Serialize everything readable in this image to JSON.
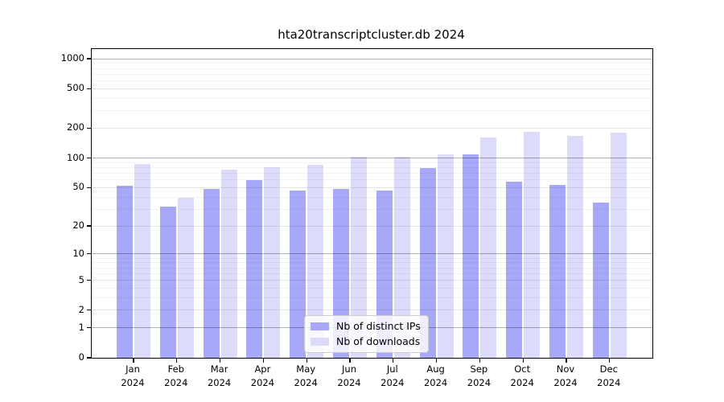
{
  "chart_data": {
    "type": "bar",
    "title": "hta20transcriptcluster.db 2024",
    "categories": [
      "Jan 2024",
      "Feb 2024",
      "Mar 2024",
      "Apr 2024",
      "May 2024",
      "Jun 2024",
      "Jul 2024",
      "Aug 2024",
      "Sep 2024",
      "Oct 2024",
      "Nov 2024",
      "Dec 2024"
    ],
    "series": [
      {
        "name": "Nb of distinct IPs",
        "color": "#a8a8f8",
        "values": [
          52,
          32,
          48,
          60,
          47,
          48,
          47,
          79,
          108,
          57,
          53,
          35
        ]
      },
      {
        "name": "Nb of downloads",
        "color": "#dcdcfa",
        "values": [
          87,
          39,
          76,
          80,
          86,
          103,
          103,
          109,
          160,
          185,
          168,
          180
        ]
      }
    ],
    "xlabel": "",
    "ylabel": "",
    "y_scale": "log1p",
    "y_ticks": [
      0,
      1,
      2,
      5,
      10,
      20,
      50,
      100,
      200,
      500,
      1000
    ],
    "y_minor_ticks": [
      3,
      4,
      6,
      7,
      8,
      9,
      30,
      40,
      60,
      70,
      80,
      90,
      300,
      400,
      600,
      700,
      800,
      900
    ],
    "ylim": [
      0,
      1250
    ],
    "grid": "on",
    "legend_position": "bottom-center",
    "colors": {
      "decade_gridline": "rgba(0,0,0,0.30)",
      "labeled_gridline": "rgba(0,0,0,0.10)",
      "minor_gridline": "rgba(0,0,0,0.045)",
      "axis": "#000000",
      "background": "#ffffff"
    }
  }
}
